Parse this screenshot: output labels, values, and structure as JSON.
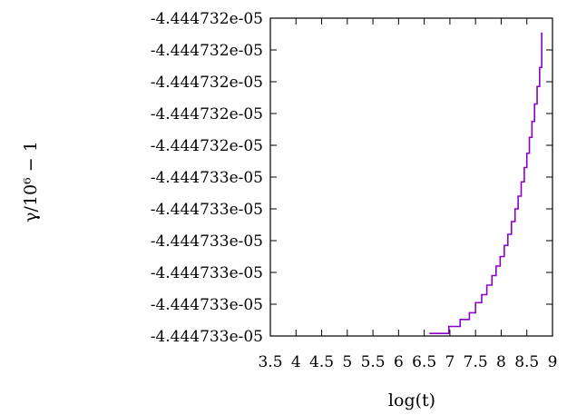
{
  "chart_data": {
    "type": "line",
    "xlabel": "log(t)",
    "ylabel": "γ/10⁶ − 1",
    "xlim": [
      3.5,
      9.0
    ],
    "xticks": [
      "3.5",
      "4",
      "4.5",
      "5",
      "5.5",
      "6",
      "6.5",
      "7",
      "7.5",
      "8",
      "8.5",
      "9"
    ],
    "yticks": [
      "-4.444733e-05",
      "-4.444733e-05",
      "-4.444733e-05",
      "-4.444733e-05",
      "-4.444733e-05",
      "-4.444733e-05",
      "-4.444732e-05",
      "-4.444732e-05",
      "-4.444732e-05",
      "-4.444732e-05",
      "-4.444732e-05"
    ],
    "ylim": [
      0,
      10
    ],
    "y_note": "y values are positions on the tick scale (0 = lowest tick, 10 = highest tick); tick labels are printed identically due to rounding",
    "grid": false,
    "series": [
      {
        "color": "#8b00c8",
        "step": true,
        "x": [
          6.6,
          6.98,
          7.2,
          7.38,
          7.5,
          7.62,
          7.72,
          7.82,
          7.9,
          7.98,
          8.06,
          8.13,
          8.2,
          8.27,
          8.33,
          8.39,
          8.45,
          8.5,
          8.55,
          8.6,
          8.65,
          8.7,
          8.75,
          8.79
        ],
        "y": [
          0.08,
          0.3,
          0.52,
          0.73,
          1.05,
          1.3,
          1.6,
          1.9,
          2.2,
          2.5,
          2.85,
          3.2,
          3.6,
          4.0,
          4.4,
          4.85,
          5.3,
          5.75,
          6.25,
          6.75,
          7.3,
          7.85,
          8.45,
          9.55
        ]
      }
    ]
  }
}
